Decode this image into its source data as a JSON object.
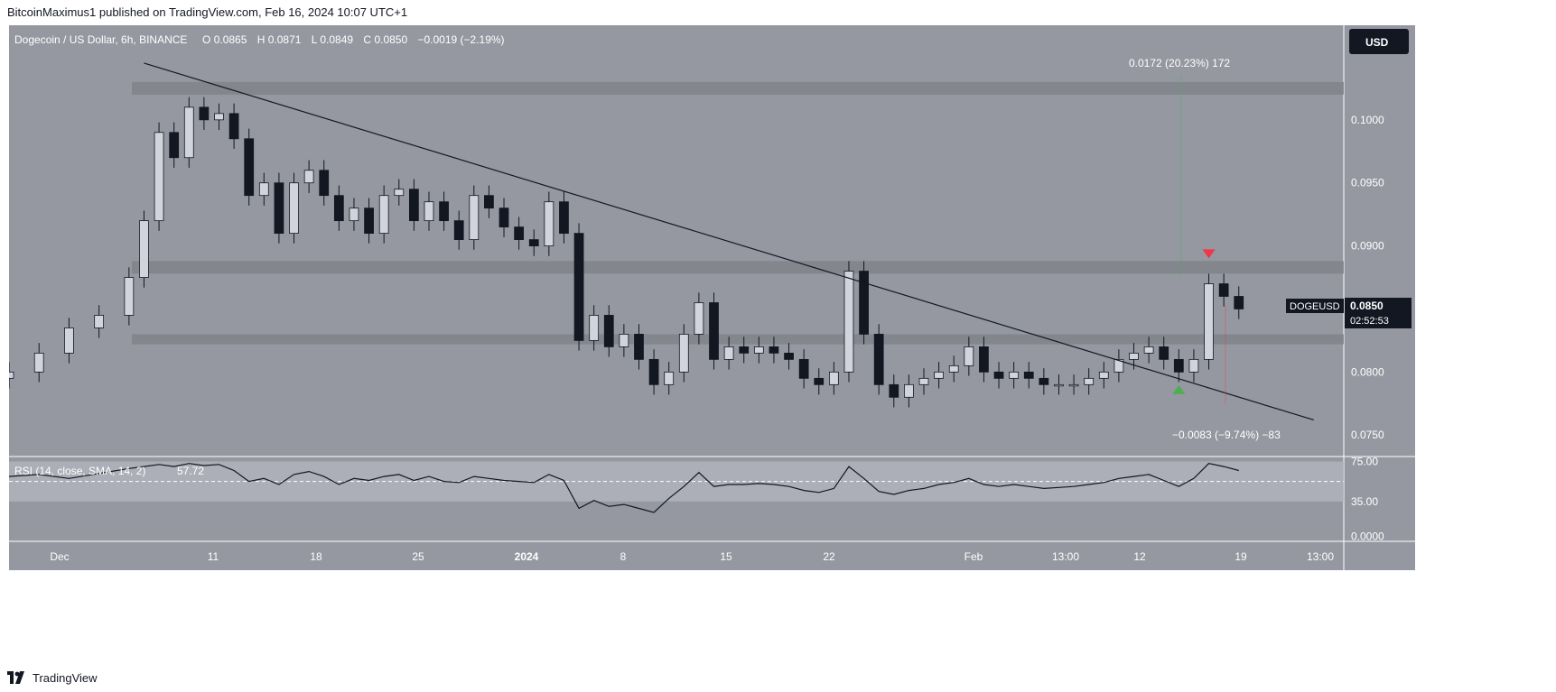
{
  "header": {
    "publisher_line": "BitcoinMaximus1 published on TradingView.com, Feb 16, 2024 10:07 UTC+1"
  },
  "footer": {
    "brand": "TradingView"
  },
  "colors": {
    "background": "#9598a1",
    "rsi_band": "#b2b5be",
    "zone": "#808389",
    "candle": "#131722",
    "down_marker": "#f23645",
    "up_marker": "#4caf50",
    "text_light": "#ffffff"
  },
  "chart_data": {
    "type": "candlestick",
    "symbol_line": {
      "name": "Dogecoin / US Dollar, 6h, BINANCE",
      "o_label": "O",
      "o": "0.0865",
      "h_label": "H",
      "h": "0.0871",
      "l_label": "L",
      "l": "0.0849",
      "c_label": "C",
      "c": "0.0850",
      "change": "−0.0019 (−2.19%)"
    },
    "currency": "USD",
    "last_price": {
      "ticker": "DOGEUSD",
      "value": "0.0850",
      "countdown": "02:52:53"
    },
    "price_axis": {
      "ticks": [
        "0.1000",
        "0.0950",
        "0.0900",
        "0.0800",
        "0.0750"
      ],
      "range": [
        0.0733,
        0.1075
      ],
      "grid": false
    },
    "x_axis": {
      "ticks": [
        "Dec",
        "11",
        "18",
        "25",
        "2024",
        "8",
        "15",
        "22",
        "Feb",
        "13:00",
        "12",
        "19",
        "13:00"
      ],
      "range": [
        "2023-11-26",
        "2024-02-23"
      ]
    },
    "zones": [
      {
        "from": 0.102,
        "to": 0.103
      },
      {
        "from": 0.0878,
        "to": 0.0888
      },
      {
        "from": 0.0822,
        "to": 0.083
      }
    ],
    "trendline": {
      "start": [
        "2023-12-05",
        0.1045
      ],
      "end": [
        "2024-02-21",
        0.0762
      ]
    },
    "measure_top": "0.0172 (20.23%) 172",
    "measure_bottom": "−0.0083 (−9.74%) −83",
    "markers": [
      {
        "type": "down",
        "date": "2024-02-14",
        "price": 0.0893
      },
      {
        "type": "up",
        "date": "2024-02-12",
        "price": 0.0786
      }
    ],
    "series": [
      {
        "name": "DOGEUSD",
        "x": [
          "2023-11-26",
          "2023-11-28",
          "2023-11-30",
          "2023-12-02",
          "2023-12-04",
          "2023-12-05",
          "2023-12-06",
          "2023-12-07",
          "2023-12-08",
          "2023-12-09",
          "2023-12-10",
          "2023-12-11",
          "2023-12-12",
          "2023-12-13",
          "2023-12-14",
          "2023-12-15",
          "2023-12-16",
          "2023-12-17",
          "2023-12-18",
          "2023-12-19",
          "2023-12-20",
          "2023-12-21",
          "2023-12-22",
          "2023-12-23",
          "2023-12-24",
          "2023-12-25",
          "2023-12-26",
          "2023-12-27",
          "2023-12-28",
          "2023-12-29",
          "2023-12-30",
          "2023-12-31",
          "2024-01-01",
          "2024-01-02",
          "2024-01-03",
          "2024-01-04",
          "2024-01-05",
          "2024-01-06",
          "2024-01-07",
          "2024-01-08",
          "2024-01-09",
          "2024-01-10",
          "2024-01-11",
          "2024-01-12",
          "2024-01-13",
          "2024-01-14",
          "2024-01-15",
          "2024-01-16",
          "2024-01-17",
          "2024-01-18",
          "2024-01-19",
          "2024-01-20",
          "2024-01-21",
          "2024-01-22",
          "2024-01-23",
          "2024-01-24",
          "2024-01-25",
          "2024-01-26",
          "2024-01-27",
          "2024-01-28",
          "2024-01-29",
          "2024-01-30",
          "2024-01-31",
          "2024-02-01",
          "2024-02-02",
          "2024-02-03",
          "2024-02-04",
          "2024-02-05",
          "2024-02-06",
          "2024-02-07",
          "2024-02-08",
          "2024-02-09",
          "2024-02-10",
          "2024-02-11",
          "2024-02-12",
          "2024-02-13",
          "2024-02-14",
          "2024-02-15",
          "2024-02-16"
        ],
        "close": [
          0.08,
          0.0815,
          0.0835,
          0.0845,
          0.0875,
          0.092,
          0.099,
          0.097,
          0.101,
          0.1,
          0.1005,
          0.0985,
          0.094,
          0.095,
          0.091,
          0.095,
          0.096,
          0.094,
          0.092,
          0.093,
          0.091,
          0.094,
          0.0945,
          0.092,
          0.0935,
          0.092,
          0.0905,
          0.094,
          0.093,
          0.0915,
          0.0905,
          0.09,
          0.0935,
          0.091,
          0.0825,
          0.0845,
          0.082,
          0.083,
          0.081,
          0.079,
          0.08,
          0.083,
          0.0855,
          0.081,
          0.082,
          0.0815,
          0.082,
          0.0815,
          0.081,
          0.0795,
          0.079,
          0.08,
          0.088,
          0.083,
          0.079,
          0.078,
          0.079,
          0.0795,
          0.08,
          0.0805,
          0.082,
          0.08,
          0.0795,
          0.08,
          0.0795,
          0.079,
          0.079,
          0.079,
          0.0795,
          0.08,
          0.081,
          0.0815,
          0.082,
          0.081,
          0.08,
          0.081,
          0.087,
          0.086,
          0.085
        ]
      }
    ]
  },
  "rsi": {
    "label": "RSI (14, close, SMA, 14, 2)",
    "value": "57.72",
    "ticks": [
      "75.00",
      "35.00",
      "0.0000"
    ],
    "band": [
      35,
      75
    ],
    "midline": 55,
    "range": [
      -5,
      80
    ],
    "values": [
      60,
      62,
      58,
      63,
      68,
      70,
      72,
      70,
      73,
      71,
      72,
      66,
      55,
      58,
      52,
      62,
      65,
      60,
      52,
      58,
      56,
      60,
      62,
      56,
      60,
      55,
      54,
      60,
      58,
      56,
      55,
      54,
      62,
      56,
      28,
      36,
      30,
      32,
      28,
      24,
      38,
      50,
      64,
      50,
      52,
      52,
      53,
      52,
      50,
      46,
      44,
      48,
      70,
      58,
      45,
      42,
      46,
      48,
      52,
      54,
      58,
      52,
      50,
      52,
      50,
      48,
      49,
      50,
      52,
      54,
      58,
      60,
      62,
      56,
      50,
      58,
      73,
      70,
      66
    ]
  }
}
